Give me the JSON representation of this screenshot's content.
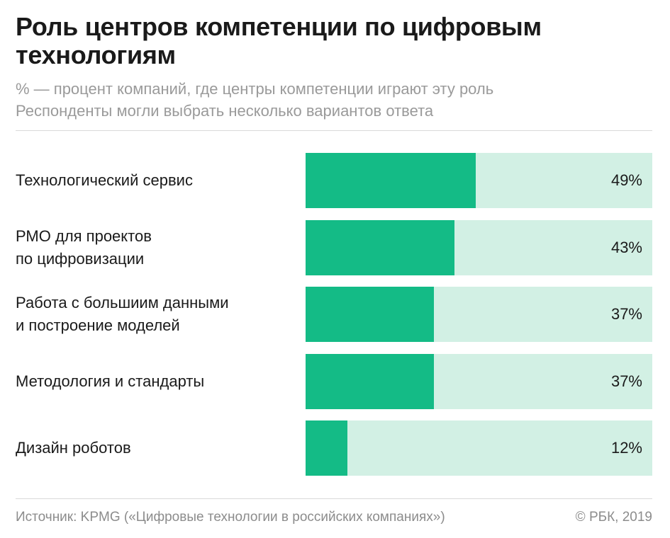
{
  "header": {
    "title": "Роль центров компетенции по цифровым технологиям",
    "subtitle_line1": "% — процент компаний, где центры компетенции играют эту роль",
    "subtitle_line2": "Респонденты могли выбрать несколько вариантов ответа"
  },
  "chart_data": {
    "type": "bar",
    "orientation": "horizontal",
    "title": "Роль центров компетенции по цифровым технологиям",
    "xlim": [
      0,
      100
    ],
    "colors": {
      "fill": "#14bb86",
      "track": "#d2f0e4"
    },
    "categories": [
      [
        "Технологический сервис"
      ],
      [
        "РМО для проектов",
        "по цифровизации"
      ],
      [
        "Работа с большиим данными",
        "и построение моделей"
      ],
      [
        "Методология и стандарты"
      ],
      [
        "Дизайн роботов"
      ]
    ],
    "values": [
      49,
      43,
      37,
      37,
      12
    ],
    "value_labels": [
      "49%",
      "43%",
      "37%",
      "37%",
      "12%"
    ]
  },
  "footer": {
    "source": "Источник: KPMG («Цифровые технологии в российских компаниях»)",
    "copyright": "© РБК, 2019"
  }
}
